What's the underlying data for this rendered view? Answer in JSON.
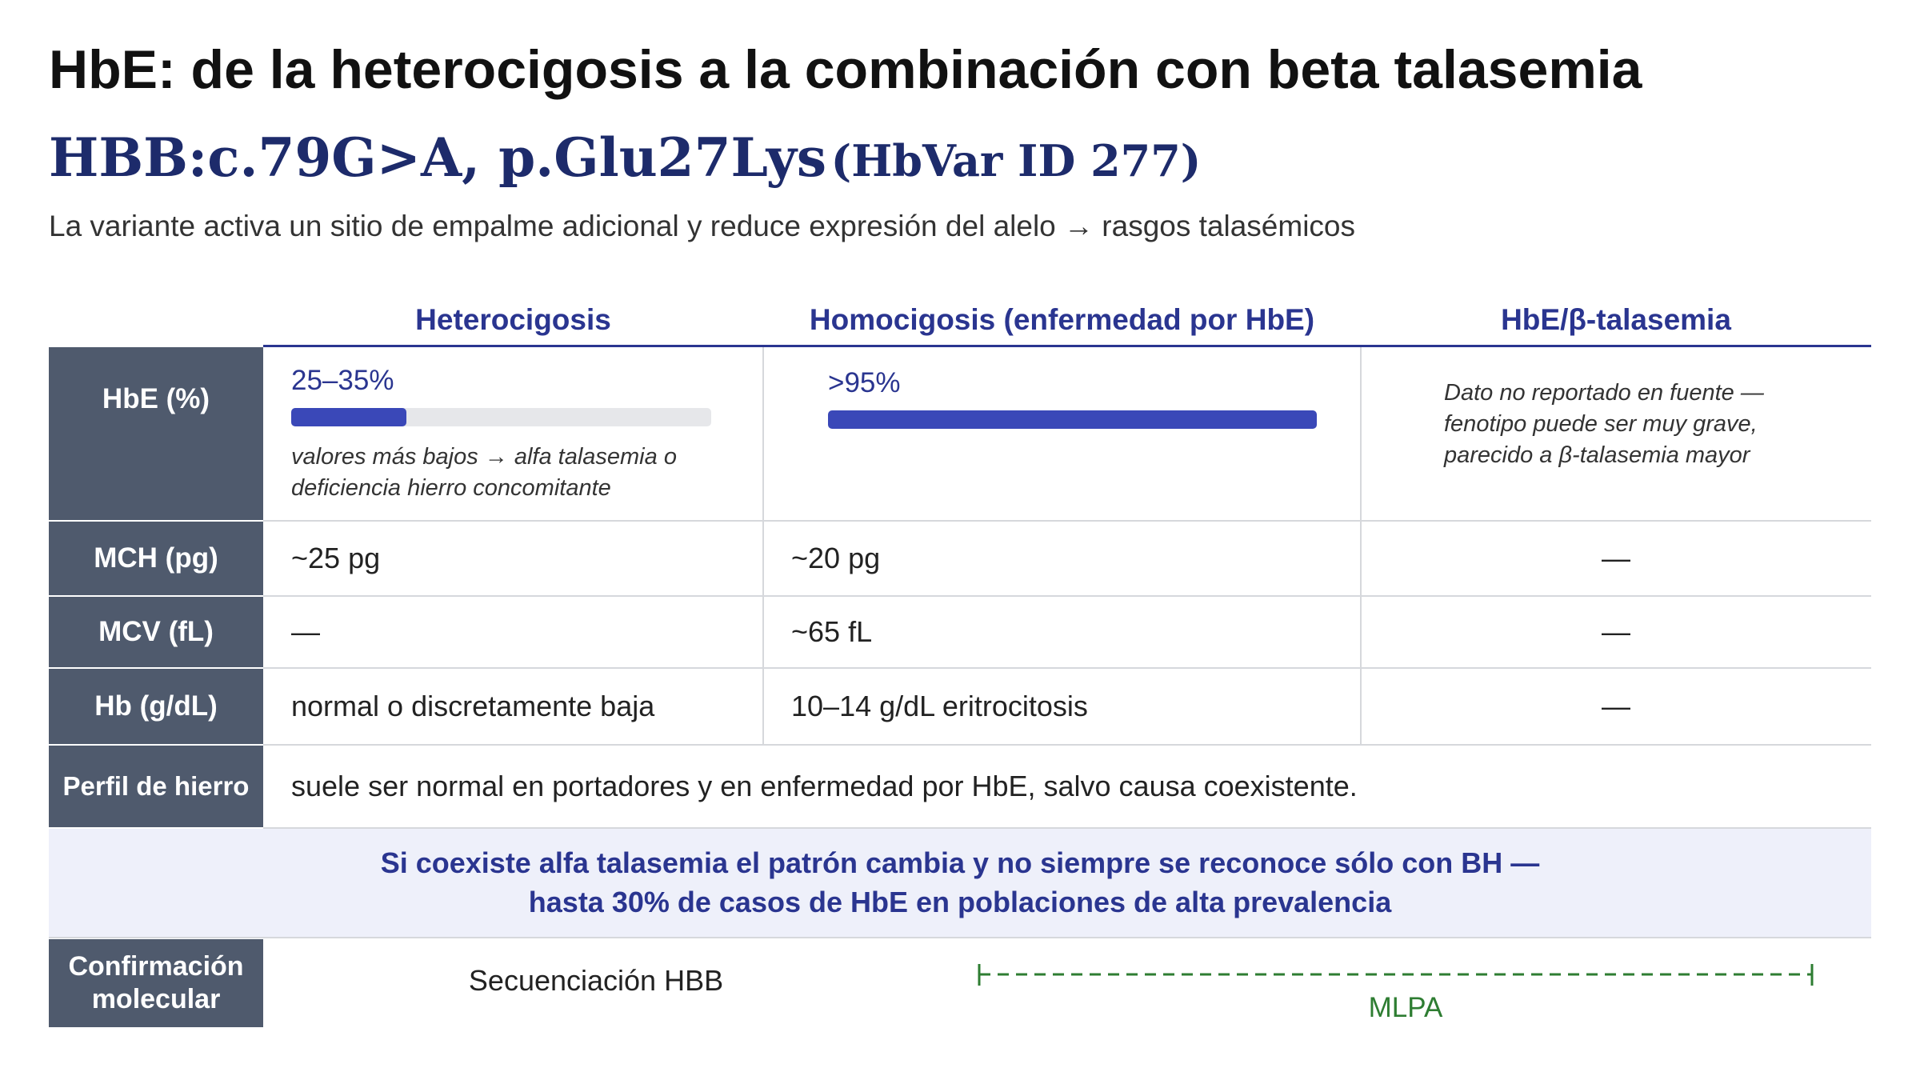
{
  "header": {
    "title": "HbE: de la heterocigosis a la combinación con beta talasemia",
    "variant": "HBB:c.79G>A, p.Glu27Lys",
    "variant_id": "(HbVar ID 277)",
    "description": "La variante activa un sitio de empalme adicional y reduce expresión del alelo → rasgos talasémicos"
  },
  "table": {
    "columns": [
      "Heterocigosis",
      "Homocigosis (enfermedad por HbE)",
      "HbE/β-talasemia"
    ],
    "rows": [
      {
        "label": "HbE (%)",
        "cells": [
          {
            "value": "25–35%",
            "note": "valores más bajos → alfa talasemia o deficiencia hierro concomitante"
          },
          {
            "value": ">95%"
          },
          {
            "note": "Dato no reportado en fuente — fenotipo puede ser muy grave, parecido a β-talasemia mayor"
          }
        ]
      },
      {
        "label": "MCH (pg)",
        "cells": [
          "~25 pg",
          "~20 pg",
          "—"
        ]
      },
      {
        "label": "MCV (fL)",
        "cells": [
          "—",
          "~65 fL",
          "—"
        ]
      },
      {
        "label": "Hb (g/dL)",
        "cells": [
          "normal o discretamente baja",
          "10–14 g/dL eritrocitosis",
          "—"
        ]
      }
    ],
    "iron": {
      "label": "Perfil de hierro",
      "text": "suele ser normal en portadores y en enfermedad por HbE, salvo causa coexistente."
    },
    "callout": [
      "Si coexiste alfa talasemia el patrón cambia y no siempre se reconoce sólo con BH —",
      "hasta 30% de casos de HbE en poblaciones de alta prevalencia"
    ],
    "confirmation": {
      "label": "Confirmación molecular",
      "methods": [
        "Secuenciación HBB",
        "MLPA"
      ]
    }
  }
}
